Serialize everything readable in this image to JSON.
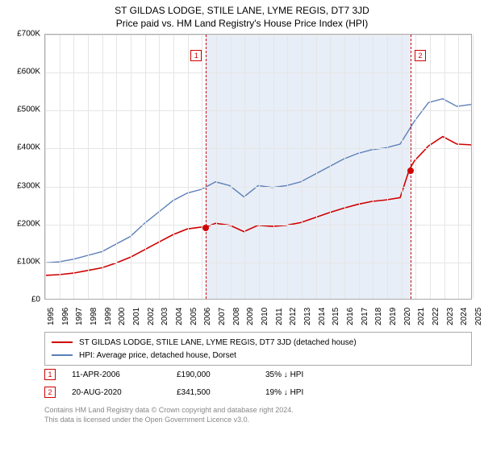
{
  "title": {
    "main": "ST GILDAS LODGE, STILE LANE, LYME REGIS, DT7 3JD",
    "sub": "Price paid vs. HM Land Registry's House Price Index (HPI)"
  },
  "chart": {
    "type": "line",
    "background_color": "#ffffff",
    "grid_color": "#e5e5e5",
    "border_color": "#aaaaaa",
    "shaded_color": "#e8eef7",
    "ylim": [
      0,
      700000
    ],
    "ytick_step": 100000,
    "yticks": [
      "£0",
      "£100K",
      "£200K",
      "£300K",
      "£400K",
      "£500K",
      "£600K",
      "£700K"
    ],
    "xlim": [
      1995,
      2025
    ],
    "xticks": [
      1995,
      1996,
      1997,
      1998,
      1999,
      2000,
      2001,
      2002,
      2003,
      2004,
      2005,
      2006,
      2007,
      2008,
      2009,
      2010,
      2011,
      2012,
      2013,
      2014,
      2015,
      2016,
      2017,
      2018,
      2019,
      2020,
      2021,
      2022,
      2023,
      2024,
      2025
    ],
    "shaded_region": [
      2006.28,
      2020.64
    ],
    "series": [
      {
        "name": "hpi",
        "label": "HPI: Average price, detached house, Dorset",
        "color": "#5b7fb8",
        "width": 1.4,
        "data": [
          [
            1995,
            95000
          ],
          [
            1996,
            98000
          ],
          [
            1997,
            105000
          ],
          [
            1998,
            115000
          ],
          [
            1999,
            125000
          ],
          [
            2000,
            145000
          ],
          [
            2001,
            165000
          ],
          [
            2002,
            200000
          ],
          [
            2003,
            230000
          ],
          [
            2004,
            260000
          ],
          [
            2005,
            280000
          ],
          [
            2006,
            290000
          ],
          [
            2007,
            310000
          ],
          [
            2008,
            300000
          ],
          [
            2009,
            270000
          ],
          [
            2010,
            300000
          ],
          [
            2011,
            295000
          ],
          [
            2012,
            300000
          ],
          [
            2013,
            310000
          ],
          [
            2014,
            330000
          ],
          [
            2015,
            350000
          ],
          [
            2016,
            370000
          ],
          [
            2017,
            385000
          ],
          [
            2018,
            395000
          ],
          [
            2019,
            400000
          ],
          [
            2020,
            410000
          ],
          [
            2021,
            470000
          ],
          [
            2022,
            520000
          ],
          [
            2023,
            530000
          ],
          [
            2024,
            510000
          ],
          [
            2025,
            515000
          ]
        ]
      },
      {
        "name": "property",
        "label": "ST GILDAS LODGE, STILE LANE, LYME REGIS, DT7 3JD (detached house)",
        "color": "#d00000",
        "width": 1.6,
        "data": [
          [
            1995,
            62000
          ],
          [
            1996,
            64000
          ],
          [
            1997,
            68000
          ],
          [
            1998,
            75000
          ],
          [
            1999,
            82000
          ],
          [
            2000,
            95000
          ],
          [
            2001,
            110000
          ],
          [
            2002,
            130000
          ],
          [
            2003,
            150000
          ],
          [
            2004,
            170000
          ],
          [
            2005,
            185000
          ],
          [
            2006,
            190000
          ],
          [
            2006.28,
            190000
          ],
          [
            2007,
            200000
          ],
          [
            2008,
            195000
          ],
          [
            2009,
            178000
          ],
          [
            2010,
            195000
          ],
          [
            2011,
            192000
          ],
          [
            2012,
            195000
          ],
          [
            2013,
            202000
          ],
          [
            2014,
            215000
          ],
          [
            2015,
            228000
          ],
          [
            2016,
            240000
          ],
          [
            2017,
            250000
          ],
          [
            2018,
            258000
          ],
          [
            2019,
            262000
          ],
          [
            2020,
            268000
          ],
          [
            2020.64,
            341500
          ],
          [
            2021,
            365000
          ],
          [
            2022,
            405000
          ],
          [
            2023,
            430000
          ],
          [
            2024,
            410000
          ],
          [
            2025,
            408000
          ]
        ]
      }
    ],
    "markers": [
      {
        "id": "1",
        "x": 2006.28,
        "y": 190000
      },
      {
        "id": "2",
        "x": 2020.64,
        "y": 341500
      }
    ]
  },
  "legend": {
    "rows": [
      {
        "color": "#d00000",
        "label": "ST GILDAS LODGE, STILE LANE, LYME REGIS, DT7 3JD (detached house)"
      },
      {
        "color": "#5b7fb8",
        "label": "HPI: Average price, detached house, Dorset"
      }
    ]
  },
  "table": {
    "rows": [
      {
        "id": "1",
        "date": "11-APR-2006",
        "price": "£190,000",
        "delta": "35% ↓ HPI"
      },
      {
        "id": "2",
        "date": "20-AUG-2020",
        "price": "£341,500",
        "delta": "19% ↓ HPI"
      }
    ]
  },
  "footer": {
    "line1": "Contains HM Land Registry data © Crown copyright and database right 2024.",
    "line2": "This data is licensed under the Open Government Licence v3.0."
  }
}
